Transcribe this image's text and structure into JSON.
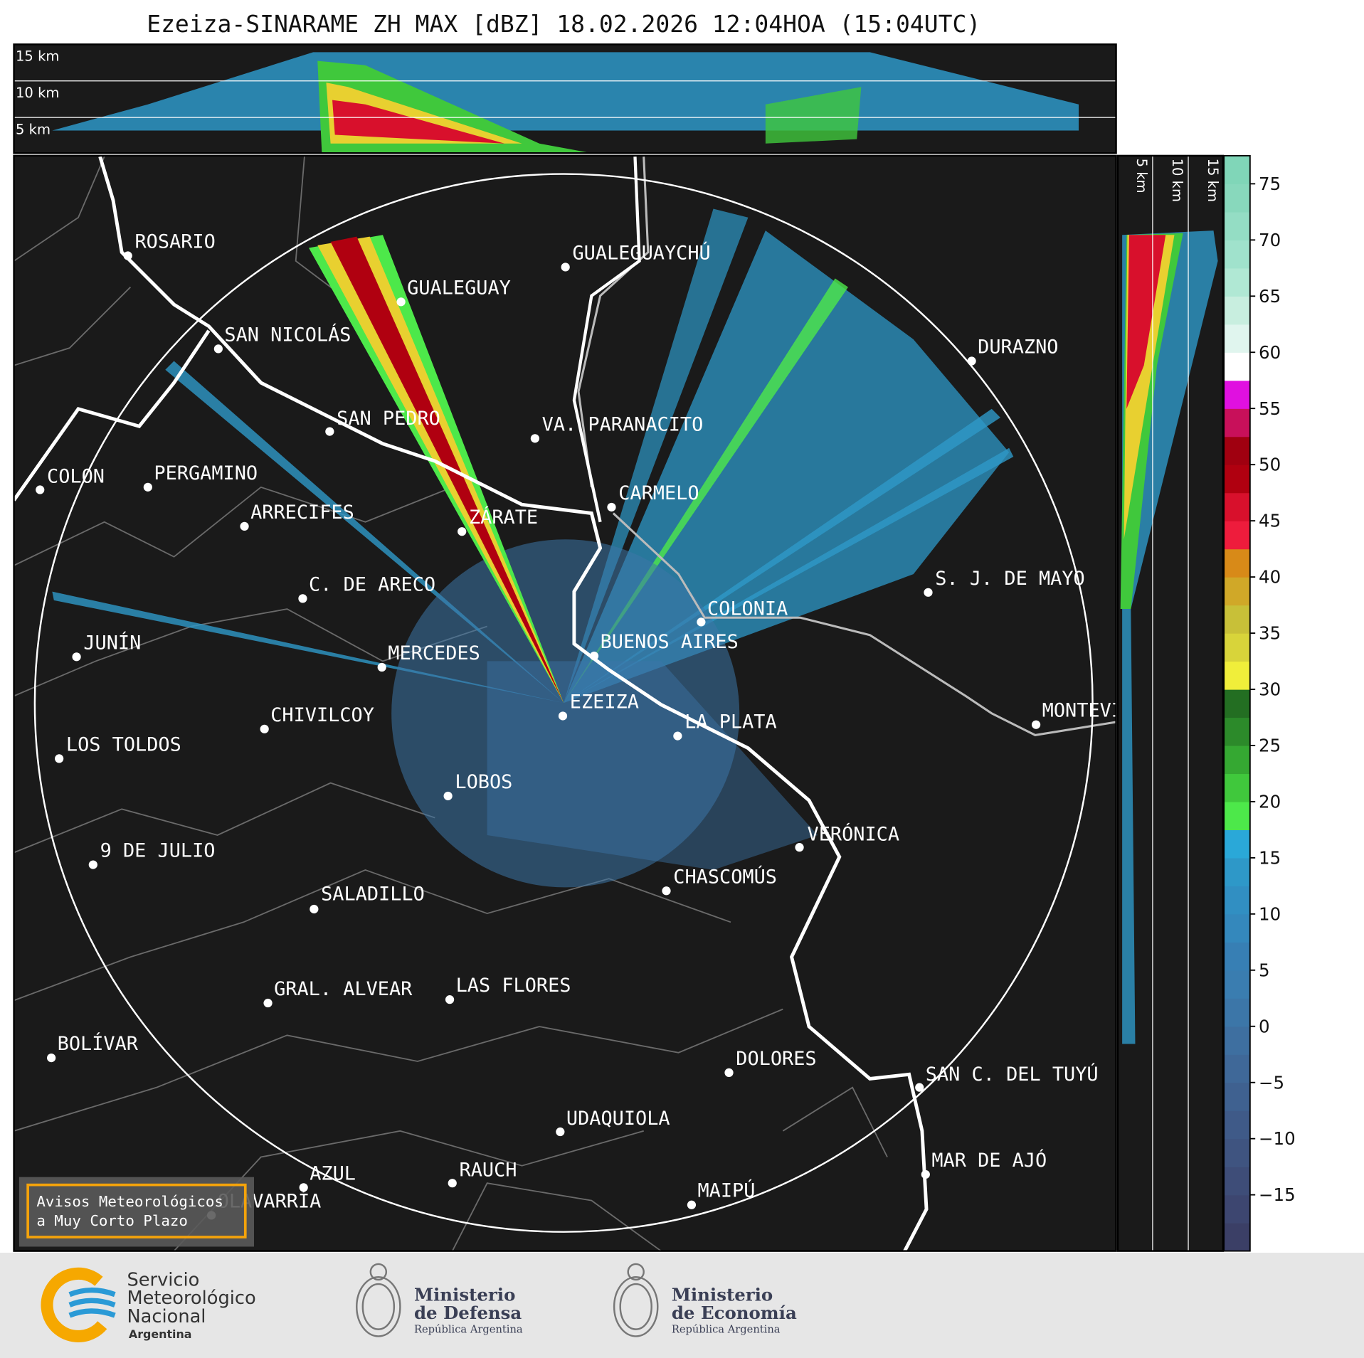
{
  "title": "Ezeiza-SINARAME ZH MAX [dBZ] 18.02.2026 12:04HOA (15:04UTC)",
  "height_panel_labels": [
    "15 km",
    "10 km",
    "5 km"
  ],
  "side_panel_labels": [
    "5 km",
    "10 km",
    "15 km"
  ],
  "cities": [
    "ROSARIO",
    "GUALEGUAYCHÚ",
    "GUALEGUAY",
    "SAN NICOLÁS",
    "DURAZNO",
    "SAN PEDRO",
    "VA. PARANACITO",
    "COLON",
    "PERGAMINO",
    "CARMELO",
    "ARRECIFES",
    "ZÁRATE",
    "S. J. DE MAYO",
    "C. DE ARECO",
    "COLONIA",
    "BUENOS AIRES",
    "JUNÍN",
    "MERCEDES",
    "EZEIZA",
    "CHIVILCOY",
    "MONTEVIDEO",
    "LA PLATA",
    "LOS TOLDOS",
    "LOBOS",
    "VERÓNICA",
    "9 DE JULIO",
    "CHASCOMÚS",
    "SALADILLO",
    "GRAL. ALVEAR",
    "LAS FLORES",
    "BOLÍVAR",
    "DOLORES",
    "SAN C. DEL TUYÚ",
    "UDAQUIOLA",
    "MAR DE AJÓ",
    "AZUL",
    "RAUCH",
    "OLAVARRÍA",
    "MAIPÚ"
  ],
  "colorbar": {
    "lim": [
      -20,
      77.5
    ],
    "ticks": [
      {
        "value": -15,
        "label": "−15"
      },
      {
        "value": -10,
        "label": "−10"
      },
      {
        "value": -5,
        "label": "−5"
      },
      0,
      5,
      10,
      15,
      20,
      25,
      30,
      35,
      40,
      45,
      50,
      55,
      60,
      65,
      70,
      75
    ],
    "colors": [
      "#3b3f66",
      "#3d4670",
      "#3e4d78",
      "#3f5480",
      "#3f5a88",
      "#3f6190",
      "#3f6898",
      "#3e6fa0",
      "#3c76a8",
      "#3a7db0",
      "#377fb4",
      "#3488bc",
      "#318fc2",
      "#2e98c8",
      "#2aa8d8",
      "#4de84a",
      "#40c83c",
      "#35a832",
      "#2c8a2a",
      "#236e22",
      "#f0ee3a",
      "#d8d43a",
      "#c8c038",
      "#d0a828",
      "#d88a18",
      "#ee1c3c",
      "#d8102c",
      "#b00010",
      "#a00010",
      "#c8105a",
      "#e010e0",
      "#ffffff",
      "#e0f5ee",
      "#c8eedf",
      "#b0e8d4",
      "#a0e2cc",
      "#94ddc4",
      "#88d8bc",
      "#80d6b8"
    ]
  },
  "warning_box": {
    "lines": [
      "Avisos Meteorológicos",
      "a Muy Corto Plazo"
    ]
  },
  "footer": {
    "smn": {
      "lines": [
        "Servicio",
        "Meteorológico",
        "Nacional"
      ],
      "country": "Argentina"
    },
    "defensa": {
      "lines": [
        "Ministerio",
        "de Defensa"
      ],
      "country": "República Argentina"
    },
    "economia": {
      "lines": [
        "Ministerio",
        "de Economía"
      ],
      "country": "República Argentina"
    }
  }
}
